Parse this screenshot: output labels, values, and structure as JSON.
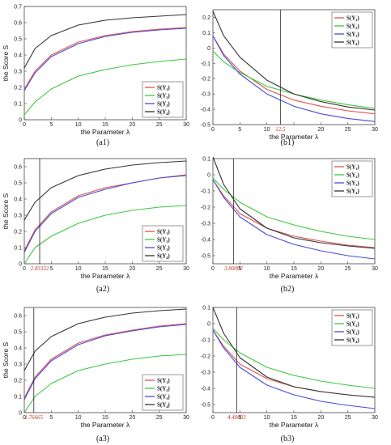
{
  "chart_data": [
    {
      "id": "a1",
      "type": "line",
      "caption": "(a1)",
      "xlabel": "the Parameter λ",
      "ylabel": "the Score S",
      "xlim": [
        0,
        30
      ],
      "ylim": [
        0,
        0.7
      ],
      "xticks": [
        0,
        5,
        10,
        15,
        20,
        25,
        30
      ],
      "yticks": [
        0,
        0.1,
        0.2,
        0.3,
        0.4,
        0.5,
        0.6,
        0.7
      ],
      "ytick_labels": [
        "0",
        "0.1",
        "0.2",
        "0.3",
        "0.4",
        "0.5",
        "0.6",
        "0.7"
      ],
      "xtick_labels": [
        "0",
        "5",
        "10",
        "15",
        "20",
        "25",
        "30"
      ],
      "legend": "bottom-right",
      "vline": null,
      "series": [
        {
          "name": "S(Y₁)",
          "color": "#d9534f",
          "x": [
            0,
            2,
            5,
            10,
            15,
            20,
            25,
            30
          ],
          "y": [
            0.19,
            0.3,
            0.4,
            0.48,
            0.52,
            0.545,
            0.56,
            0.57
          ]
        },
        {
          "name": "S(Y₂)",
          "color": "#3cc83c",
          "x": [
            0,
            2,
            5,
            10,
            15,
            20,
            25,
            30
          ],
          "y": [
            0.03,
            0.11,
            0.19,
            0.27,
            0.31,
            0.34,
            0.36,
            0.375
          ]
        },
        {
          "name": "S(Y₃)",
          "color": "#4a4ad8",
          "x": [
            0,
            2,
            5,
            10,
            15,
            20,
            25,
            30
          ],
          "y": [
            0.18,
            0.29,
            0.39,
            0.47,
            0.515,
            0.54,
            0.555,
            0.565
          ]
        },
        {
          "name": "S(Y₄)",
          "color": "#333333",
          "x": [
            0,
            2,
            5,
            10,
            15,
            20,
            25,
            30
          ],
          "y": [
            0.32,
            0.44,
            0.52,
            0.585,
            0.615,
            0.63,
            0.64,
            0.65
          ]
        }
      ]
    },
    {
      "id": "b1",
      "type": "line",
      "caption": "(b1)",
      "xlabel": "the Parameter λ",
      "ylabel": "",
      "xlim": [
        0,
        30
      ],
      "ylim": [
        -0.5,
        0.25
      ],
      "xticks": [
        0,
        5,
        10,
        15,
        20,
        25,
        30
      ],
      "xtick_labels": [
        "0",
        "5",
        "10",
        "",
        "20",
        "25",
        "30"
      ],
      "yticks": [
        -0.5,
        -0.4,
        -0.3,
        -0.2,
        -0.1,
        0,
        0.1,
        0.2
      ],
      "ytick_labels": [
        "-0.5",
        "-0.4",
        "-0.3",
        "-0.2",
        "-0.1",
        "0",
        "0.1",
        "0.2"
      ],
      "legend": "top-right",
      "vline": {
        "x": 12.5,
        "label": "12.5"
      },
      "series": [
        {
          "name": "S(Y₁)",
          "color": "#d9534f",
          "x": [
            0,
            2,
            5,
            10,
            15,
            20,
            25,
            30
          ],
          "y": [
            0.08,
            -0.04,
            -0.15,
            -0.27,
            -0.34,
            -0.38,
            -0.41,
            -0.43
          ]
        },
        {
          "name": "S(Y₂)",
          "color": "#3cc83c",
          "x": [
            0,
            2,
            5,
            10,
            15,
            20,
            25,
            30
          ],
          "y": [
            -0.02,
            -0.09,
            -0.16,
            -0.25,
            -0.3,
            -0.34,
            -0.37,
            -0.395
          ]
        },
        {
          "name": "S(Y₃)",
          "color": "#4a4ad8",
          "x": [
            0,
            2,
            5,
            10,
            15,
            20,
            25,
            30
          ],
          "y": [
            0.08,
            -0.05,
            -0.17,
            -0.3,
            -0.38,
            -0.43,
            -0.46,
            -0.48
          ]
        },
        {
          "name": "S(Y₄)",
          "color": "#333333",
          "x": [
            0,
            2,
            5,
            10,
            15,
            20,
            25,
            30
          ],
          "y": [
            0.24,
            0.08,
            -0.06,
            -0.21,
            -0.3,
            -0.35,
            -0.385,
            -0.405
          ]
        }
      ]
    },
    {
      "id": "a2",
      "type": "line",
      "caption": "(a2)",
      "xlabel": "the Parameter λ",
      "ylabel": "the Score S",
      "xlim": [
        0,
        30
      ],
      "ylim": [
        0,
        0.65
      ],
      "xticks": [
        0,
        5,
        10,
        15,
        20,
        25,
        30
      ],
      "xtick_labels": [
        "0",
        "5",
        "10",
        "15",
        "20",
        "25",
        "30"
      ],
      "yticks": [
        0,
        0.1,
        0.2,
        0.3,
        0.4,
        0.5,
        0.6
      ],
      "ytick_labels": [
        "0",
        "0.1",
        "0.2",
        "0.3",
        "0.4",
        "0.5",
        "0.6"
      ],
      "legend": "bottom-right",
      "vline": {
        "x": 2.85332,
        "label": "2.85332"
      },
      "series": [
        {
          "name": "S(Y₁)",
          "color": "#d9534f",
          "x": [
            0,
            2,
            5,
            10,
            15,
            20,
            25,
            30
          ],
          "y": [
            0.08,
            0.21,
            0.32,
            0.42,
            0.47,
            0.5,
            0.53,
            0.55
          ]
        },
        {
          "name": "S(Y₂)",
          "color": "#3cc83c",
          "x": [
            0,
            2,
            5,
            10,
            15,
            20,
            25,
            30
          ],
          "y": [
            0.0,
            0.1,
            0.17,
            0.25,
            0.3,
            0.33,
            0.35,
            0.36
          ]
        },
        {
          "name": "S(Y₃)",
          "color": "#4a4ad8",
          "x": [
            0,
            2,
            5,
            10,
            15,
            20,
            25,
            30
          ],
          "y": [
            0.07,
            0.2,
            0.31,
            0.41,
            0.46,
            0.5,
            0.53,
            0.545
          ]
        },
        {
          "name": "S(Y₄)",
          "color": "#333333",
          "x": [
            0,
            2,
            5,
            10,
            15,
            20,
            25,
            30
          ],
          "y": [
            0.27,
            0.38,
            0.47,
            0.545,
            0.585,
            0.61,
            0.625,
            0.635
          ]
        }
      ]
    },
    {
      "id": "b2",
      "type": "line",
      "caption": "(b2)",
      "xlabel": "the Parameter λ",
      "ylabel": "",
      "xlim": [
        0,
        30
      ],
      "ylim": [
        -0.55,
        0.1
      ],
      "xticks": [
        0,
        5,
        10,
        15,
        20,
        25,
        30
      ],
      "xtick_labels": [
        "0",
        "5",
        "10",
        "15",
        "20",
        "25",
        "30"
      ],
      "yticks": [
        -0.5,
        -0.4,
        -0.3,
        -0.2,
        -0.1,
        0,
        0.1
      ],
      "ytick_labels": [
        "-0.5",
        "-0.4",
        "-0.3",
        "-0.2",
        "-0.1",
        "0",
        "0.1"
      ],
      "legend": "top-right",
      "vline": {
        "x": 3.80002,
        "label": "3.80002"
      },
      "series": [
        {
          "name": "S(Y₁)",
          "color": "#d9534f",
          "x": [
            0,
            2,
            5,
            10,
            15,
            20,
            25,
            30
          ],
          "y": [
            -0.03,
            -0.13,
            -0.24,
            -0.33,
            -0.38,
            -0.41,
            -0.435,
            -0.45
          ]
        },
        {
          "name": "S(Y₂)",
          "color": "#3cc83c",
          "x": [
            0,
            2,
            5,
            10,
            15,
            20,
            25,
            30
          ],
          "y": [
            -0.02,
            -0.09,
            -0.17,
            -0.26,
            -0.31,
            -0.35,
            -0.38,
            -0.4
          ]
        },
        {
          "name": "S(Y₃)",
          "color": "#4a4ad8",
          "x": [
            0,
            2,
            5,
            10,
            15,
            20,
            25,
            30
          ],
          "y": [
            -0.03,
            -0.14,
            -0.26,
            -0.37,
            -0.43,
            -0.47,
            -0.5,
            -0.52
          ]
        },
        {
          "name": "S(Y₄)",
          "color": "#333333",
          "x": [
            0,
            2,
            5,
            10,
            15,
            20,
            25,
            30
          ],
          "y": [
            0.11,
            -0.06,
            -0.21,
            -0.33,
            -0.39,
            -0.42,
            -0.44,
            -0.455
          ]
        }
      ]
    },
    {
      "id": "a3",
      "type": "line",
      "caption": "(a3)",
      "xlabel": "the Parameter λ",
      "ylabel": "the Score S",
      "xlim": [
        0,
        30
      ],
      "ylim": [
        0,
        0.65
      ],
      "xticks": [
        0,
        5,
        10,
        15,
        20,
        25,
        30
      ],
      "xtick_labels": [
        "0",
        "5",
        "10",
        "15",
        "20",
        "25",
        "30"
      ],
      "yticks": [
        0,
        0.1,
        0.2,
        0.3,
        0.4,
        0.5,
        0.6
      ],
      "ytick_labels": [
        "0",
        "0.1",
        "0.2",
        "0.3",
        "0.4",
        "0.5",
        "0.6"
      ],
      "legend": "bottom-right",
      "vline": {
        "x": 1.76665,
        "label": "1.76665"
      },
      "series": [
        {
          "name": "S(Y₁)",
          "color": "#d9534f",
          "x": [
            0,
            2,
            5,
            10,
            15,
            20,
            25,
            30
          ],
          "y": [
            0.09,
            0.22,
            0.33,
            0.43,
            0.48,
            0.51,
            0.535,
            0.55
          ]
        },
        {
          "name": "S(Y₂)",
          "color": "#3cc83c",
          "x": [
            0,
            2,
            5,
            10,
            15,
            20,
            25,
            30
          ],
          "y": [
            0.0,
            0.1,
            0.18,
            0.26,
            0.3,
            0.33,
            0.35,
            0.36
          ]
        },
        {
          "name": "S(Y₃)",
          "color": "#4a4ad8",
          "x": [
            0,
            2,
            5,
            10,
            15,
            20,
            25,
            30
          ],
          "y": [
            0.08,
            0.21,
            0.32,
            0.42,
            0.475,
            0.505,
            0.53,
            0.545
          ]
        },
        {
          "name": "S(Y₄)",
          "color": "#333333",
          "x": [
            0,
            2,
            5,
            10,
            15,
            20,
            25,
            30
          ],
          "y": [
            0.26,
            0.38,
            0.47,
            0.55,
            0.59,
            0.615,
            0.63,
            0.64
          ]
        }
      ]
    },
    {
      "id": "b3",
      "type": "line",
      "caption": "(b3)",
      "xlabel": "the Parameter λ",
      "ylabel": "",
      "xlim": [
        0,
        30
      ],
      "ylim": [
        -0.55,
        0.1
      ],
      "xticks": [
        0,
        5,
        10,
        15,
        20,
        25,
        30
      ],
      "xtick_labels": [
        "0",
        "5",
        "10",
        "15",
        "20",
        "25",
        "30"
      ],
      "yticks": [
        -0.5,
        -0.4,
        -0.3,
        -0.2,
        -0.1,
        0,
        0.1
      ],
      "ytick_labels": [
        "-0.5",
        "-0.4",
        "-0.3",
        "-0.2",
        "-0.1",
        "0",
        "0.1"
      ],
      "legend": "top-right",
      "vline": {
        "x": 4.40003,
        "label": "4.40003"
      },
      "series": [
        {
          "name": "S(Y₁)",
          "color": "#d9534f",
          "x": [
            0,
            2,
            5,
            10,
            15,
            20,
            25,
            30
          ],
          "y": [
            -0.04,
            -0.14,
            -0.25,
            -0.34,
            -0.39,
            -0.42,
            -0.44,
            -0.455
          ]
        },
        {
          "name": "S(Y₂)",
          "color": "#3cc83c",
          "x": [
            0,
            2,
            5,
            10,
            15,
            20,
            25,
            30
          ],
          "y": [
            -0.03,
            -0.1,
            -0.18,
            -0.27,
            -0.32,
            -0.355,
            -0.38,
            -0.4
          ]
        },
        {
          "name": "S(Y₃)",
          "color": "#4a4ad8",
          "x": [
            0,
            2,
            5,
            10,
            15,
            20,
            25,
            30
          ],
          "y": [
            -0.04,
            -0.15,
            -0.27,
            -0.38,
            -0.44,
            -0.48,
            -0.505,
            -0.525
          ]
        },
        {
          "name": "S(Y₄)",
          "color": "#333333",
          "x": [
            0,
            2,
            5,
            10,
            15,
            20,
            25,
            30
          ],
          "y": [
            0.1,
            -0.06,
            -0.21,
            -0.33,
            -0.39,
            -0.42,
            -0.44,
            -0.455
          ]
        }
      ]
    }
  ]
}
